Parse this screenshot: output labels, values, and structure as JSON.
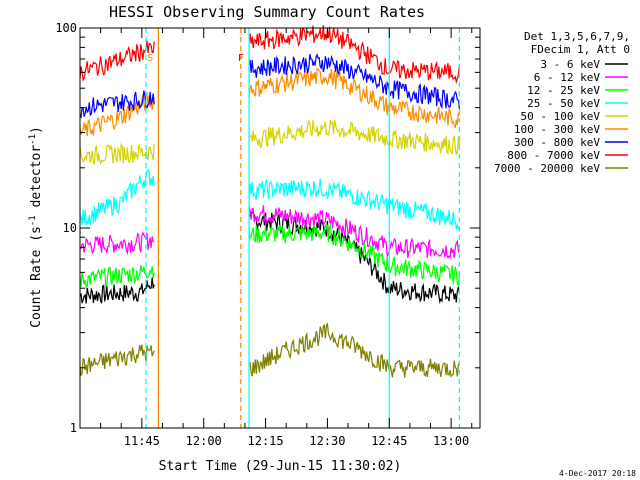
{
  "chart_data": {
    "type": "line",
    "title": "HESSI Observing Summary Count Rates",
    "xlabel": "Start Time (29-Jun-15 11:30:02)",
    "ylabel": "Count Rate (s⁻¹ detector⁻¹)",
    "ylabel_parts": {
      "prefix": "Count Rate (s",
      "sup1": "-1",
      "mid": " detector",
      "sup2": "-1",
      "suffix": ")"
    },
    "y_scale": "log",
    "ylim": [
      1,
      100
    ],
    "xlim": [
      "11:30",
      "13:07"
    ],
    "y_ticks": [
      "1",
      "10",
      "100"
    ],
    "x_ticks": [
      "11:45",
      "12:00",
      "12:15",
      "12:30",
      "12:45",
      "13:00"
    ],
    "grid": false,
    "legend_position": "right",
    "legend_header": [
      "Det 1,3,5,6,7,9,",
      "FDecim 1, Att 0"
    ],
    "footer": "4-Dec-2017 20:18",
    "annotations": [
      {
        "text": "S",
        "time": "11:47",
        "color": "#ff8c00"
      },
      {
        "text": "F",
        "time": "12:09",
        "color": "#ff0000"
      }
    ],
    "vertical_markers": [
      {
        "time": "11:46",
        "style": "dashed",
        "color": "#00ffff"
      },
      {
        "time": "11:49",
        "style": "solid",
        "color": "#ff8c00"
      },
      {
        "time": "12:09",
        "style": "dashed",
        "color": "#ff8c00"
      },
      {
        "time": "12:11",
        "style": "solid",
        "color": "#00ffff"
      },
      {
        "time": "12:45",
        "style": "solid",
        "color": "#00ffff"
      },
      {
        "time": "13:02",
        "style": "dashed",
        "color": "#00ffff"
      }
    ],
    "series": [
      {
        "name": "3 - 6 keV",
        "color": "#000000",
        "x": [
          "11:30",
          "11:45",
          "12:12",
          "12:30",
          "12:45",
          "13:02"
        ],
        "y": [
          4.6,
          4.8,
          11.0,
          10.0,
          5.0,
          4.6
        ]
      },
      {
        "name": "6 - 12 keV",
        "color": "#ff00ff",
        "x": [
          "11:30",
          "11:45",
          "12:12",
          "12:30",
          "12:45",
          "13:02"
        ],
        "y": [
          8.2,
          8.5,
          12.0,
          11.0,
          8.0,
          7.8
        ]
      },
      {
        "name": "12 - 25 keV",
        "color": "#00ff00",
        "x": [
          "11:30",
          "11:45",
          "12:12",
          "12:30",
          "12:45",
          "13:02"
        ],
        "y": [
          5.5,
          6.0,
          9.3,
          9.5,
          6.5,
          5.8
        ]
      },
      {
        "name": "25 - 50 keV",
        "color": "#00ffff",
        "x": [
          "11:30",
          "11:40",
          "11:46",
          "12:12",
          "12:28",
          "12:45",
          "13:02"
        ],
        "y": [
          11.0,
          13.5,
          18.0,
          15.5,
          16.0,
          13.0,
          11.0
        ]
      },
      {
        "name": "50 - 100 keV",
        "color": "#d4d400",
        "x": [
          "11:30",
          "11:45",
          "12:12",
          "12:30",
          "12:45",
          "13:02"
        ],
        "y": [
          23.0,
          24.0,
          28.0,
          32.0,
          28.0,
          26.0
        ]
      },
      {
        "name": "100 - 300 keV",
        "color": "#ff8c00",
        "x": [
          "11:30",
          "11:40",
          "11:46",
          "12:12",
          "12:30",
          "12:45",
          "13:02"
        ],
        "y": [
          30.0,
          36.0,
          43.0,
          50.0,
          58.0,
          40.0,
          35.0
        ]
      },
      {
        "name": "300 - 800 keV",
        "color": "#0000ff",
        "x": [
          "11:30",
          "11:45",
          "12:12",
          "12:30",
          "12:45",
          "13:02"
        ],
        "y": [
          40.0,
          44.0,
          63.0,
          68.0,
          50.0,
          43.0
        ]
      },
      {
        "name": "800 - 7000 keV",
        "color": "#ff0000",
        "x": [
          "11:30",
          "11:40",
          "11:46",
          "12:12",
          "12:30",
          "12:45",
          "13:02"
        ],
        "y": [
          60.0,
          70.0,
          78.0,
          85.0,
          95.0,
          62.0,
          60.0
        ]
      },
      {
        "name": "7000 - 20000 keV",
        "color": "#808000",
        "x": [
          "11:30",
          "11:45",
          "12:12",
          "12:30",
          "12:45",
          "13:02"
        ],
        "y": [
          2.0,
          2.4,
          2.0,
          3.0,
          2.0,
          2.0
        ]
      }
    ]
  }
}
